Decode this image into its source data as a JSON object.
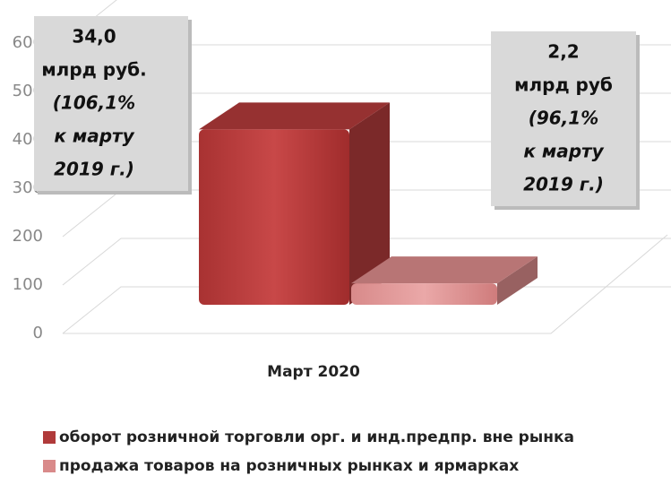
{
  "chart_data": {
    "type": "bar3d",
    "categories": [
      "Март 2020"
    ],
    "series": [
      {
        "name": "оборот розничной торговли орг. и инд.предпр. вне рынка",
        "color": "#b03a3a",
        "values": [
          340
        ]
      },
      {
        "name": "продажа товаров на розничных рынках и ярмарках",
        "color": "#d98a8a",
        "values": [
          22
        ]
      }
    ],
    "ylim": [
      0,
      600
    ],
    "yticks": [
      0,
      100,
      200,
      300,
      400,
      500,
      600
    ],
    "grid": true,
    "annotations": [
      {
        "lines": [
          "34,0",
          "млрд руб.",
          "(106,1%",
          "к марту",
          "2019 г.)"
        ]
      },
      {
        "lines": [
          "2,2",
          "млрд руб",
          "(96,1%",
          "к марту",
          "2019 г.)"
        ]
      }
    ]
  }
}
